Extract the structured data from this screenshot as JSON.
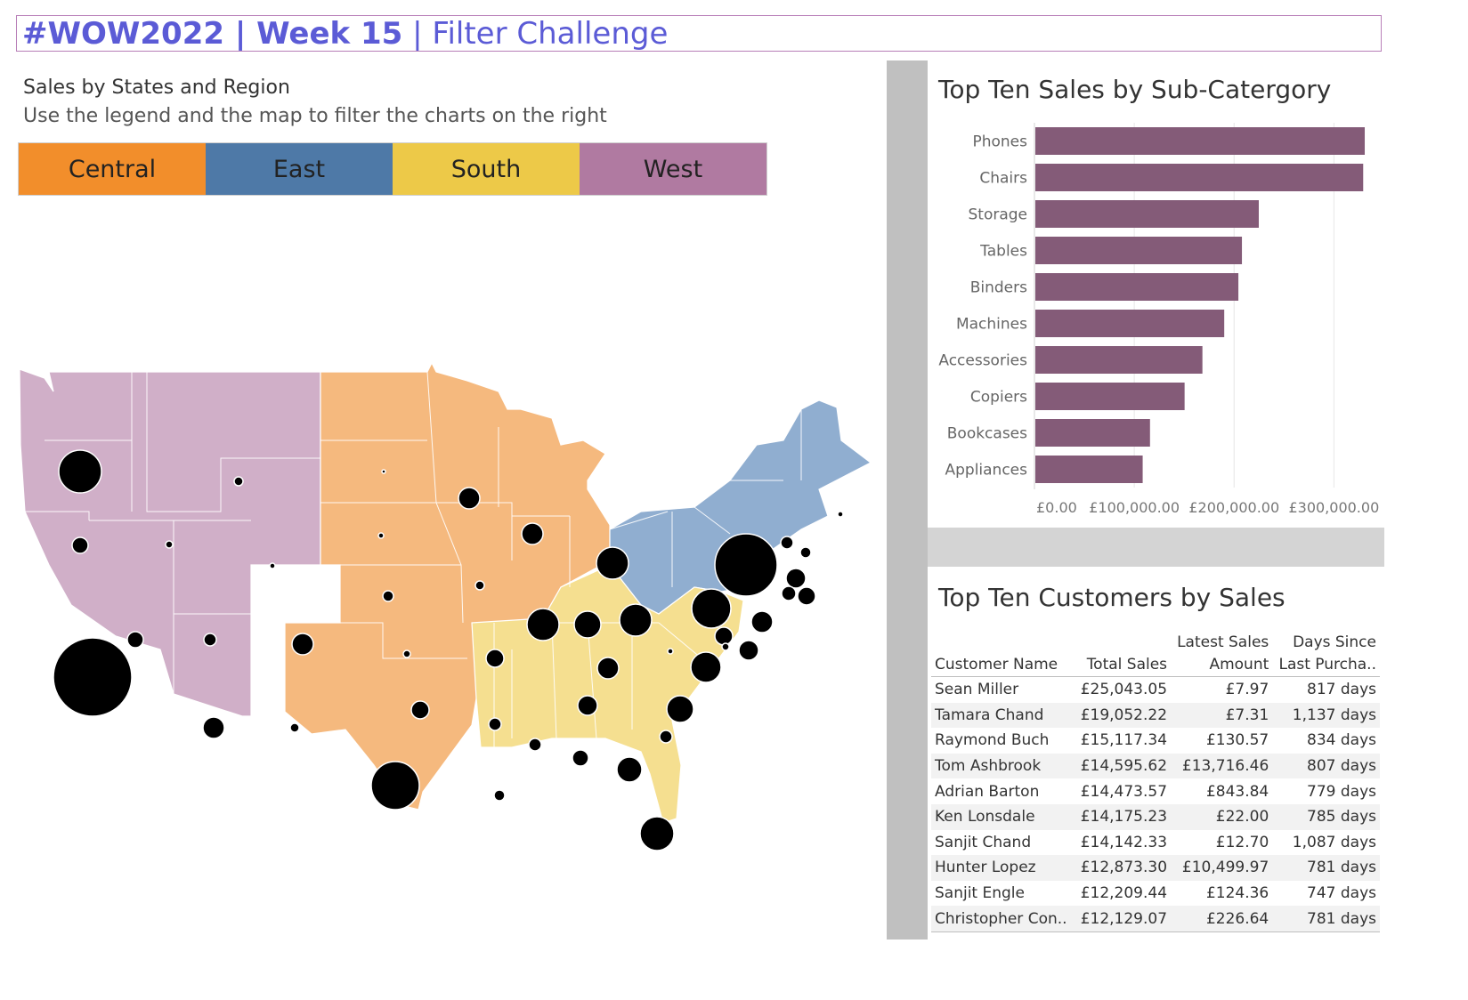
{
  "header": {
    "title_bold": "#WOW2022 | Week 15",
    "title_sep": " | ",
    "title_rest": "Filter Challenge",
    "border_color": "#b87fb8",
    "text_color": "#5b5bd6"
  },
  "map_panel": {
    "subtitle": "Sales by States and Region",
    "instruction": "Use the legend and the map to filter the charts on the right"
  },
  "legend": [
    {
      "label": "Central",
      "color": "#f28e2b"
    },
    {
      "label": "East",
      "color": "#4e79a7"
    },
    {
      "label": "South",
      "color": "#edc948"
    },
    {
      "label": "West",
      "color": "#b07aa1"
    }
  ],
  "region_fills": {
    "West": "#d0afc8",
    "Central": "#f5b97e",
    "East": "#90aed0",
    "South": "#f5df90"
  },
  "bar_chart": {
    "title": "Top Ten Sales by Sub-Catergory",
    "bar_color": "#845b78",
    "chart_data": {
      "type": "bar",
      "orientation": "horizontal",
      "categories": [
        "Phones",
        "Chairs",
        "Storage",
        "Tables",
        "Binders",
        "Machines",
        "Accessories",
        "Copiers",
        "Bookcases",
        "Appliances"
      ],
      "values": [
        330007,
        328449,
        223844,
        206966,
        203413,
        189239,
        167380,
        149528,
        114880,
        107532
      ],
      "xlim": [
        0,
        330000
      ],
      "xticks": [
        0,
        100000,
        200000,
        300000
      ],
      "xtick_labels": [
        "£0.00",
        "£100,000.00",
        "£200,000.00",
        "£300,000.00"
      ],
      "xlabel": "",
      "ylabel": ""
    }
  },
  "customers": {
    "title": "Top Ten Customers by Sales",
    "headers": {
      "name": "Customer Name",
      "total": "Total Sales",
      "latest_1": "Latest Sales",
      "latest_2": "Amount",
      "days_1": "Days Since",
      "days_2": "Last Purcha.."
    },
    "rows": [
      {
        "name": "Sean Miller",
        "total": "£25,043.05",
        "latest": "£7.97",
        "days": "817 days"
      },
      {
        "name": "Tamara Chand",
        "total": "£19,052.22",
        "latest": "£7.31",
        "days": "1,137 days"
      },
      {
        "name": "Raymond Buch",
        "total": "£15,117.34",
        "latest": "£130.57",
        "days": "834 days"
      },
      {
        "name": "Tom Ashbrook",
        "total": "£14,595.62",
        "latest": "£13,716.46",
        "days": "807 days"
      },
      {
        "name": "Adrian Barton",
        "total": "£14,473.57",
        "latest": "£843.84",
        "days": "779 days"
      },
      {
        "name": "Ken Lonsdale",
        "total": "£14,175.23",
        "latest": "£22.00",
        "days": "785 days"
      },
      {
        "name": "Sanjit Chand",
        "total": "£14,142.33",
        "latest": "£12.70",
        "days": "1,087 days"
      },
      {
        "name": "Hunter Lopez",
        "total": "£12,873.30",
        "latest": "£10,499.97",
        "days": "781 days"
      },
      {
        "name": "Sanjit Engle",
        "total": "£12,209.44",
        "latest": "£124.36",
        "days": "747 days"
      },
      {
        "name": "Christopher Con..",
        "total": "£12,129.07",
        "latest": "£226.64",
        "days": "781 days"
      }
    ]
  }
}
